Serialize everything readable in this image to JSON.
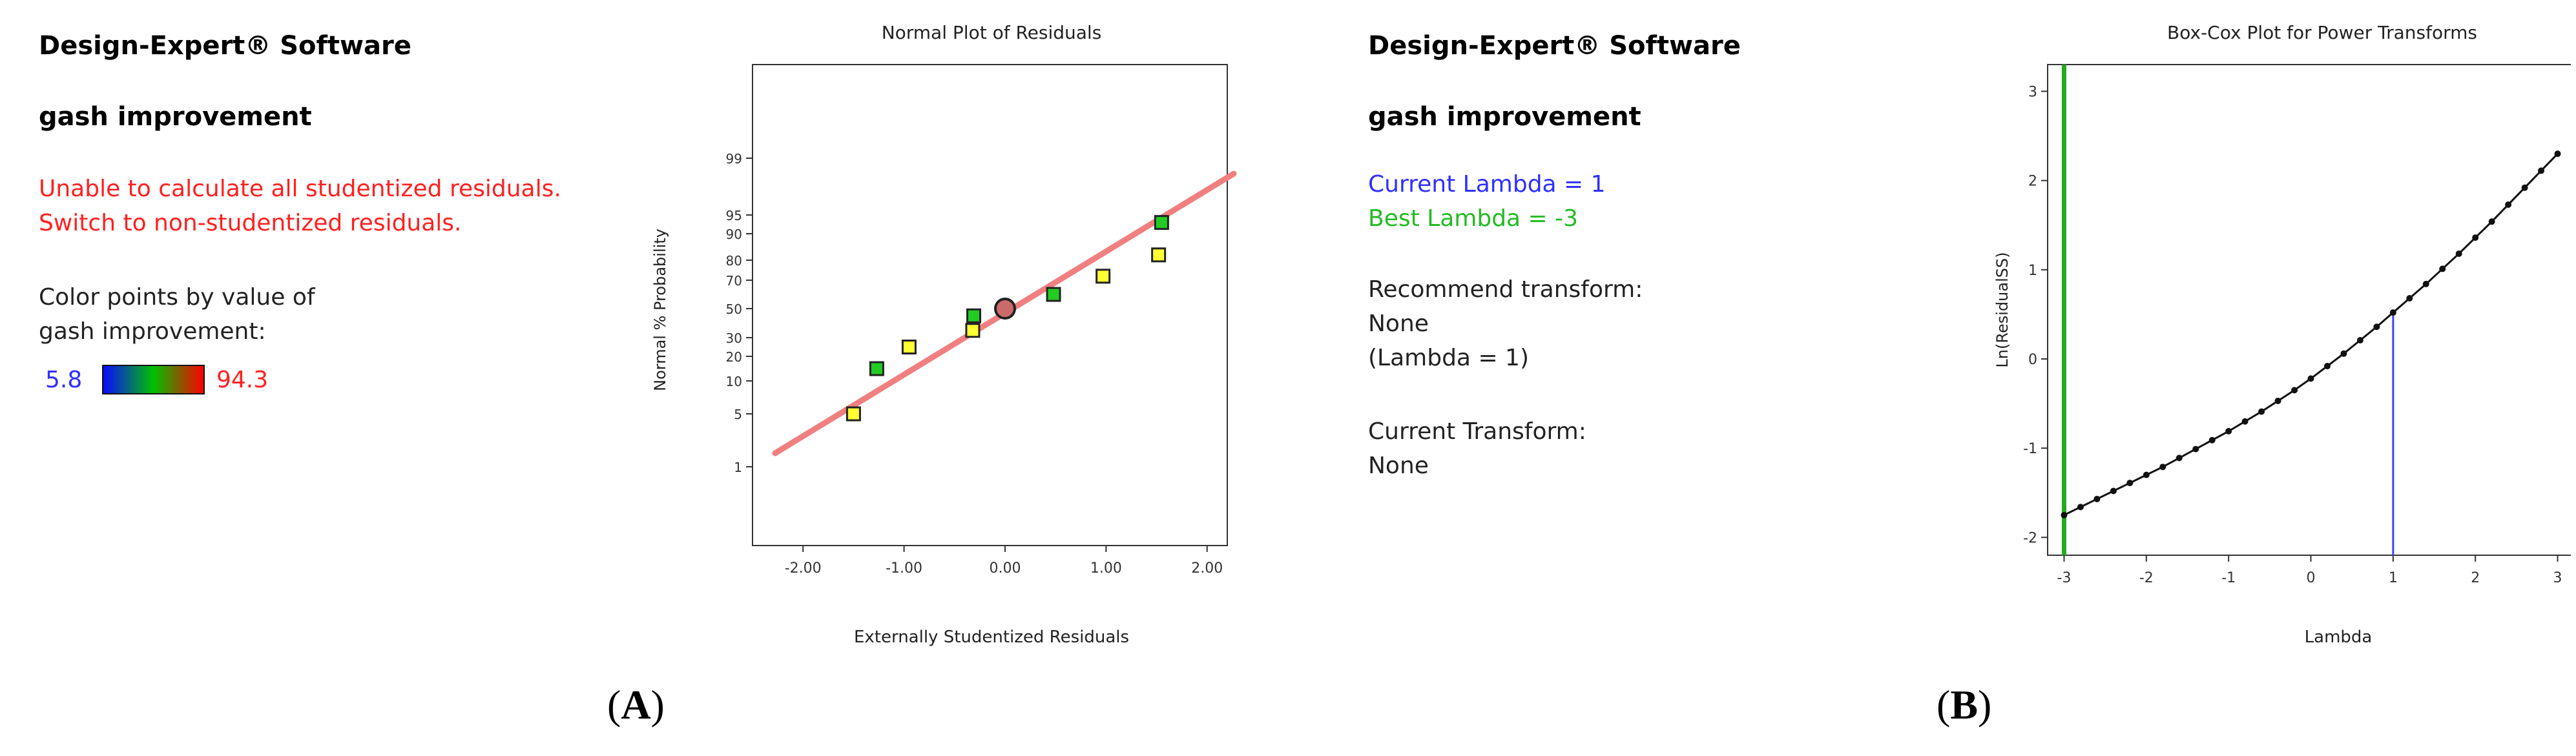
{
  "left_panel": {
    "software": "Design-Expert® Software",
    "response": "gash improvement",
    "warning_line1": "Unable to calculate all studentized residuals.",
    "warning_line2": "Switch to non-studentized residuals.",
    "color_label_line1": "Color points by value of",
    "color_label_line2": "gash improvement:",
    "color_min": "5.8",
    "color_max": "94.3"
  },
  "right_panel": {
    "software": "Design-Expert® Software",
    "response": "gash improvement",
    "current_lambda": "Current Lambda = 1",
    "best_lambda": "Best Lambda = -3",
    "recommend_label": "Recommend transform:",
    "recommend_value": "None",
    "recommend_lambda": "(Lambda = 1)",
    "current_transform_label": "Current Transform:",
    "current_transform_value": "None"
  },
  "captions": {
    "a": "A",
    "b": "B"
  },
  "colors": {
    "fit_line": "#f08080",
    "best_lambda_line": "#22aa22",
    "current_lambda_line": "#4444ff"
  },
  "chart_data": [
    {
      "type": "scatter",
      "title": "Normal Plot of Residuals",
      "xlabel": "Externally Studentized Residuals",
      "ylabel": "Normal % Probability",
      "xlim": [
        -2.5,
        2.2
      ],
      "x_ticks": [
        "-2.00",
        "-1.00",
        "0.00",
        "1.00",
        "2.00"
      ],
      "y_ticks": [
        "1",
        "5",
        "10",
        "20",
        "30",
        "50",
        "70",
        "80",
        "90",
        "95",
        "99"
      ],
      "grid": false,
      "points": [
        {
          "x": -1.5,
          "y": 5,
          "color": "yellow"
        },
        {
          "x": -1.27,
          "y": 15,
          "color": "green"
        },
        {
          "x": -0.95,
          "y": 25,
          "color": "yellow"
        },
        {
          "x": -0.32,
          "y": 35,
          "color": "yellow"
        },
        {
          "x": -0.31,
          "y": 45,
          "color": "green"
        },
        {
          "x": 0.0,
          "y": 50,
          "color": "red",
          "shape": "circle"
        },
        {
          "x": 0.48,
          "y": 60,
          "color": "green"
        },
        {
          "x": 0.97,
          "y": 72,
          "color": "yellow"
        },
        {
          "x": 1.52,
          "y": 82,
          "color": "yellow"
        },
        {
          "x": 1.55,
          "y": 93,
          "color": "green"
        }
      ],
      "fit_line": {
        "x0": -2.2,
        "y0": 3,
        "x1": 2.2,
        "y1": 97
      }
    },
    {
      "type": "line",
      "title": "Box-Cox Plot for Power Transforms",
      "xlabel": "Lambda",
      "ylabel": "Ln(ResidualSS)",
      "xlim": [
        -3.2,
        3.2
      ],
      "ylim": [
        -2.2,
        3.3
      ],
      "x_ticks": [
        "-3",
        "-2",
        "-1",
        "0",
        "1",
        "2",
        "3"
      ],
      "y_ticks": [
        "-2",
        "-1",
        "0",
        "1",
        "2",
        "3"
      ],
      "grid": false,
      "series": [
        {
          "x": [
            -3.0,
            -2.8,
            -2.6,
            -2.4,
            -2.2,
            -2.0,
            -1.8,
            -1.6,
            -1.4,
            -1.2,
            -1.0,
            -0.8,
            -0.6,
            -0.4,
            -0.2,
            0.0,
            0.2,
            0.4,
            0.6,
            0.8,
            1.0,
            1.2,
            1.4,
            1.6,
            1.8,
            2.0,
            2.2,
            2.4,
            2.6,
            2.8,
            3.0
          ],
          "values": [
            -1.75,
            -1.66,
            -1.57,
            -1.48,
            -1.39,
            -1.3,
            -1.21,
            -1.11,
            -1.01,
            -0.91,
            -0.81,
            -0.7,
            -0.59,
            -0.47,
            -0.35,
            -0.22,
            -0.08,
            0.06,
            0.21,
            0.36,
            0.52,
            0.68,
            0.84,
            1.01,
            1.18,
            1.36,
            1.54,
            1.73,
            1.92,
            2.11,
            2.3
          ]
        }
      ],
      "best_lambda": -3,
      "current_lambda": 1,
      "current_lambda_y": 0.52
    }
  ]
}
